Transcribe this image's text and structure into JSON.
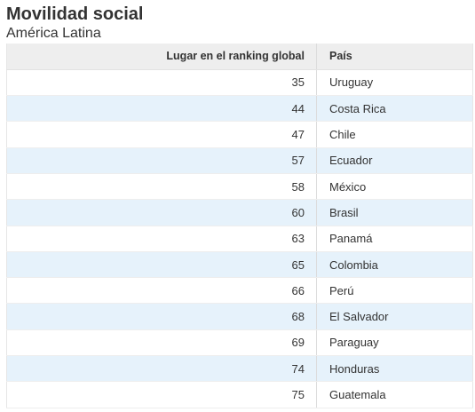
{
  "title": "Movilidad social",
  "subtitle": "América Latina",
  "chart_data": {
    "type": "table",
    "title": "Movilidad social",
    "subtitle": "América Latina",
    "columns": [
      "Lugar en el ranking global",
      "País"
    ],
    "rows": [
      [
        "35",
        "Uruguay"
      ],
      [
        "44",
        "Costa Rica"
      ],
      [
        "47",
        "Chile"
      ],
      [
        "57",
        "Ecuador"
      ],
      [
        "58",
        "México"
      ],
      [
        "60",
        "Brasil"
      ],
      [
        "63",
        "Panamá"
      ],
      [
        "65",
        "Colombia"
      ],
      [
        "66",
        "Perú"
      ],
      [
        "68",
        "El Salvador"
      ],
      [
        "69",
        "Paraguay"
      ],
      [
        "74",
        "Honduras"
      ],
      [
        "75",
        "Guatemala"
      ]
    ]
  },
  "colors": {
    "header_bg": "#eeeeee",
    "stripe": "#e6f2fb",
    "text": "#333333"
  }
}
